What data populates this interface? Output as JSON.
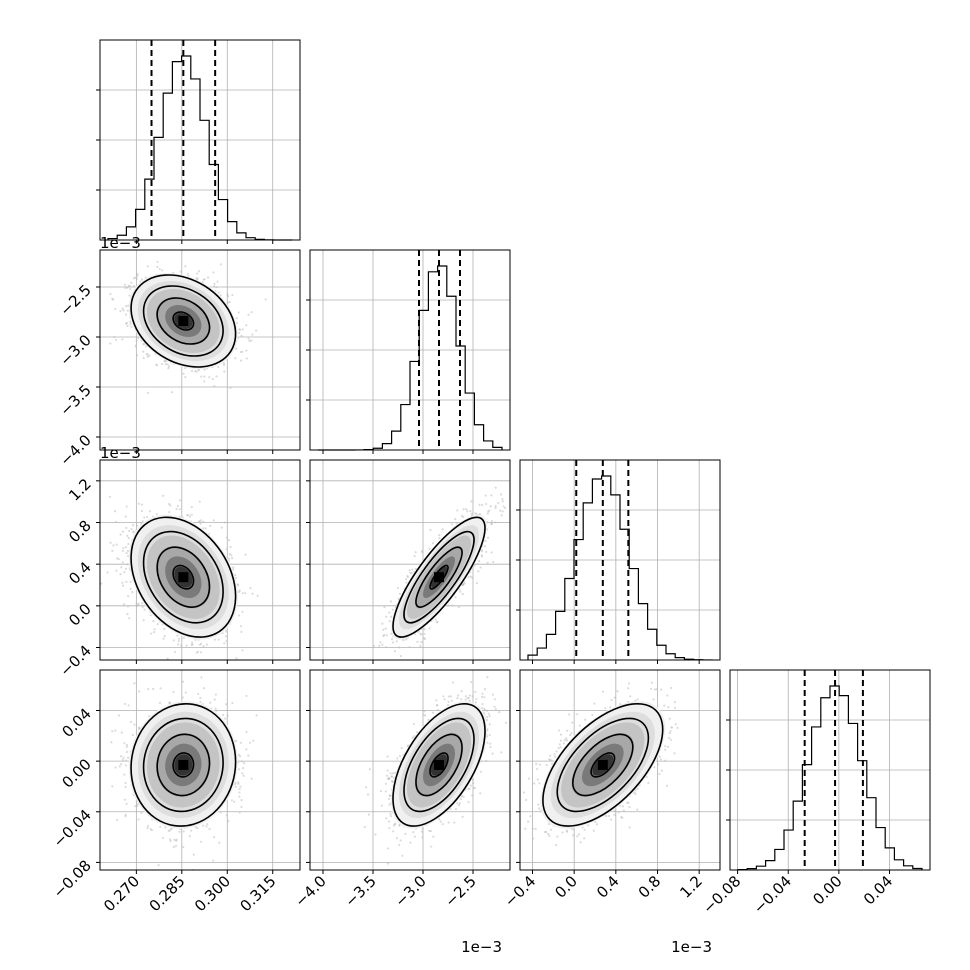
{
  "chart_data": {
    "type": "corner",
    "description_colors": {
      "hist": "#000000",
      "grid": "#b0b0b0",
      "contour": "#000000",
      "scatter": "#bdbdbd"
    },
    "params": [
      {
        "range": [
          0.258,
          0.324
        ],
        "ticks": [
          "0.270",
          "0.285",
          "0.300",
          "0.315"
        ],
        "tick_values": [
          0.27,
          0.285,
          0.3,
          0.315
        ],
        "quantiles": [
          0.275,
          0.2855,
          0.296
        ],
        "mean": 0.2855,
        "sd": 0.0075,
        "offset_label": ""
      },
      {
        "range": [
          -4.13,
          -2.13
        ],
        "ticks": [
          "−4.0",
          "−3.5",
          "−3.0",
          "−2.5"
        ],
        "tick_values": [
          -4.0,
          -3.5,
          -3.0,
          -2.5
        ],
        "quantiles": [
          -3.04,
          -2.84,
          -2.63
        ],
        "mean": -2.84,
        "sd": 0.2,
        "offset_label": "1e−3"
      },
      {
        "range": [
          -0.52,
          1.4
        ],
        "ticks": [
          "−0.4",
          "0.0",
          "0.4",
          "0.8",
          "1.2"
        ],
        "tick_values": [
          -0.4,
          0.0,
          0.4,
          0.8,
          1.2
        ],
        "quantiles": [
          0.02,
          0.275,
          0.52
        ],
        "mean": 0.275,
        "sd": 0.25,
        "offset_label": "1e−3"
      },
      {
        "range": [
          -0.086,
          0.072
        ],
        "ticks": [
          "−0.08",
          "−0.04",
          "0.00",
          "0.04"
        ],
        "tick_values": [
          -0.08,
          -0.04,
          0.0,
          0.04
        ],
        "quantiles": [
          -0.027,
          -0.003,
          0.019
        ],
        "mean": -0.003,
        "sd": 0.021,
        "offset_label": ""
      }
    ],
    "correlations": {
      "1,0": -0.28,
      "2,0": -0.32,
      "2,1": 0.82,
      "3,0": 0.05,
      "3,1": 0.55,
      "3,2": 0.58
    },
    "diag_hist_ylim": {
      "0": [
        0,
        13000
      ],
      "1": [
        0,
        4200
      ],
      "2": [
        0,
        6000
      ],
      "3": [
        0,
        9000
      ]
    },
    "diag_hist_yticks": {
      "0": [
        3000,
        6000,
        9000,
        12000
      ],
      "1": [
        1000,
        2000,
        3000,
        4000
      ],
      "2": [
        1500,
        3000,
        4500
      ],
      "3": [
        2500,
        5000,
        7500
      ]
    },
    "grid": true,
    "n_samples": 2600,
    "bins": 20
  }
}
